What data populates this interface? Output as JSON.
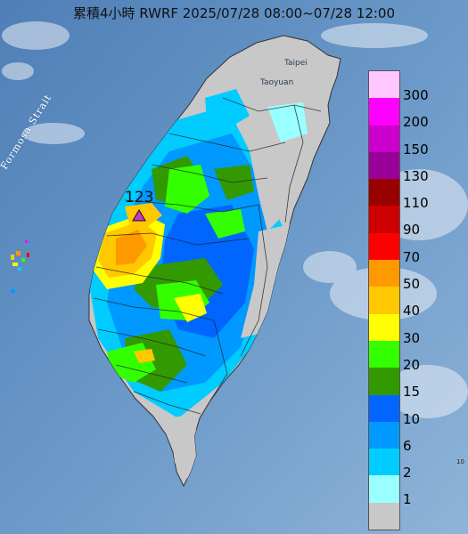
{
  "title": "累積4小時 RWRF 2025/07/28 08:00~07/28 12:00",
  "strait_label": "Formosa Strait",
  "places": {
    "taipei": "Taipei",
    "taoyuan": "Taoyuan"
  },
  "max_marker": {
    "value": "123",
    "icon": "triangle-marker-icon",
    "color": "#cc33cc"
  },
  "corner_text": "10",
  "legend": [
    {
      "label": "300",
      "color": "#ffc6ff"
    },
    {
      "label": "200",
      "color": "#ff00ff"
    },
    {
      "label": "150",
      "color": "#cc00cc"
    },
    {
      "label": "130",
      "color": "#990099"
    },
    {
      "label": "110",
      "color": "#990000"
    },
    {
      "label": "90",
      "color": "#cc0000"
    },
    {
      "label": "70",
      "color": "#ff0000"
    },
    {
      "label": "50",
      "color": "#ff9900"
    },
    {
      "label": "40",
      "color": "#ffc800"
    },
    {
      "label": "30",
      "color": "#ffff00"
    },
    {
      "label": "20",
      "color": "#33ff00"
    },
    {
      "label": "15",
      "color": "#339900"
    },
    {
      "label": "10",
      "color": "#0066ff"
    },
    {
      "label": "6",
      "color": "#0099ff"
    },
    {
      "label": "2",
      "color": "#00ccff"
    },
    {
      "label": "1",
      "color": "#99ffff"
    },
    {
      "label": "",
      "color": "#c8c8c8"
    }
  ],
  "colors": {
    "sea": "#5d8cc0",
    "land_nodata": "#c8c8c8"
  }
}
